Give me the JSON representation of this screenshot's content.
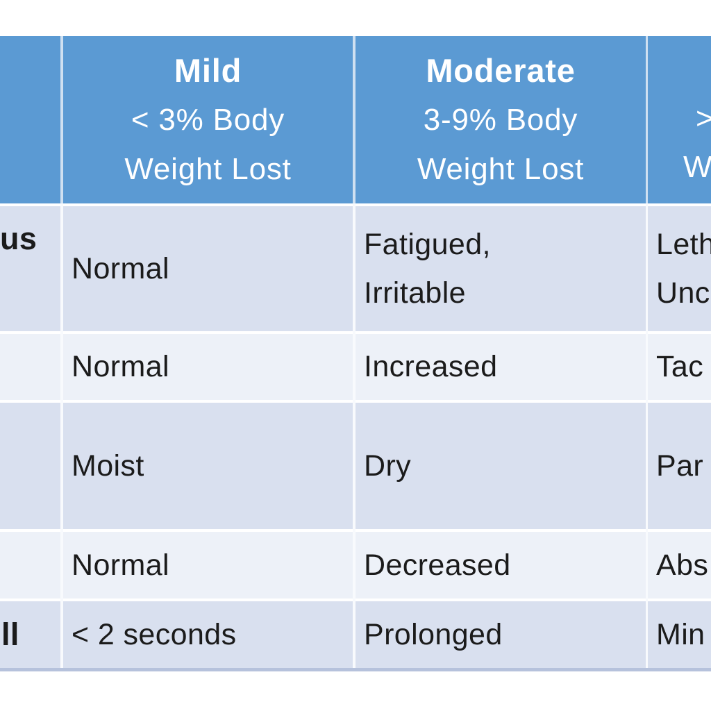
{
  "colors": {
    "page_bg": "#ffffff",
    "header_bg": "#5b9ad3",
    "header_text": "#ffffff",
    "header_divider": "#cfe0f1",
    "band_dark": "#d9e0ef",
    "band_light": "#edf1f8",
    "divider": "#f8fafd",
    "bottom_border": "#b6c2dc",
    "body_text": "#1b1b1b"
  },
  "table": {
    "header": {
      "mild": {
        "title": "Mild",
        "line2": "< 3% Body",
        "line3": "Weight Lost"
      },
      "moderate": {
        "title": "Moderate",
        "line2": "3-9% Body",
        "line3": "Weight Lost"
      },
      "severe": {
        "line2_fragment": ">",
        "line3_fragment": "W"
      }
    },
    "rows": [
      {
        "label": "us",
        "mild": "Normal",
        "moderate_line1": "Fatigued,",
        "moderate_line2": "Irritable",
        "severe_line1": "Leth",
        "severe_line2": "Unc"
      },
      {
        "label": "",
        "mild": "Normal",
        "moderate": "Increased",
        "severe": "Tac"
      },
      {
        "label": "",
        "mild": "Moist",
        "moderate": "Dry",
        "severe": "Par"
      },
      {
        "label": "",
        "mild": "Normal",
        "moderate": "Decreased",
        "severe": "Abs"
      },
      {
        "label": "ll",
        "mild": "< 2 seconds",
        "moderate": "Prolonged",
        "severe": "Min"
      }
    ]
  }
}
